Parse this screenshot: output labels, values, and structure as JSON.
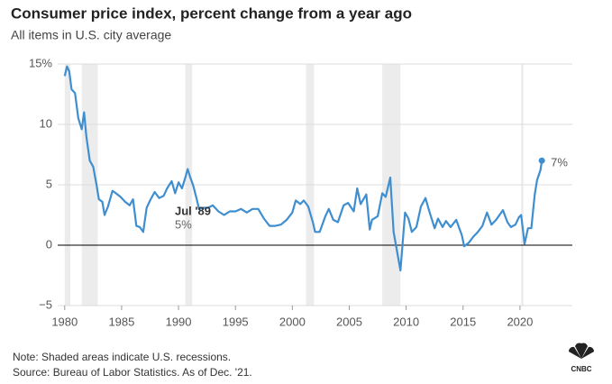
{
  "chart_data": {
    "type": "line",
    "title": "Consumer price index, percent change from a year ago",
    "subtitle": "All items in U.S. city average",
    "note": "Note: Shaded areas indicate U.S. recessions.",
    "source": "Source: Bureau of Labor Statistics. As of Dec. '21.",
    "logo": "CNBC",
    "annotations": [
      "Jul '89",
      "5%"
    ],
    "last_label": "7%",
    "color": "#3f8fd0",
    "recession_color": "#ececec",
    "recessions": [
      [
        1980.0,
        1980.5
      ],
      [
        1981.5,
        1982.9
      ],
      [
        1990.6,
        1991.2
      ],
      [
        2001.2,
        2001.9
      ],
      [
        2007.9,
        2009.5
      ],
      [
        2020.1,
        2020.3
      ]
    ],
    "xlim": [
      1979.7,
      2024.6
    ],
    "xticks": [
      1980,
      1985,
      1990,
      1995,
      2000,
      2005,
      2010,
      2015,
      2020
    ],
    "ylim": [
      -5,
      15
    ],
    "yticks": [
      {
        "value": -5,
        "label": "−5"
      },
      0,
      5,
      10,
      {
        "value": 15,
        "label": "15%"
      }
    ],
    "grid": true,
    "x": [
      1980.0,
      1980.2,
      1980.4,
      1980.6,
      1980.9,
      1981.2,
      1981.5,
      1981.7,
      1981.9,
      1982.2,
      1982.5,
      1982.8,
      1983.0,
      1983.3,
      1983.5,
      1983.8,
      1984.2,
      1984.5,
      1984.9,
      1985.3,
      1985.7,
      1986.0,
      1986.3,
      1986.6,
      1986.9,
      1987.2,
      1987.5,
      1987.9,
      1988.3,
      1988.7,
      1989.0,
      1989.4,
      1989.7,
      1990.0,
      1990.3,
      1990.6,
      1990.8,
      1991.0,
      1991.3,
      1991.6,
      1991.8,
      1992.2,
      1992.6,
      1993.0,
      1993.5,
      1994.0,
      1994.5,
      1995.0,
      1995.5,
      1996.0,
      1996.5,
      1997.0,
      1997.5,
      1998.0,
      1998.5,
      1999.0,
      1999.5,
      2000.0,
      2000.3,
      2000.7,
      2001.0,
      2001.4,
      2001.8,
      2002.0,
      2002.4,
      2002.9,
      2003.2,
      2003.6,
      2004.0,
      2004.5,
      2004.9,
      2005.4,
      2005.7,
      2006.0,
      2006.5,
      2006.8,
      2007.0,
      2007.5,
      2007.9,
      2008.2,
      2008.6,
      2008.9,
      2009.1,
      2009.5,
      2009.9,
      2010.2,
      2010.5,
      2010.9,
      2011.3,
      2011.7,
      2012.0,
      2012.5,
      2012.8,
      2013.2,
      2013.5,
      2013.9,
      2014.4,
      2014.9,
      2015.1,
      2015.5,
      2015.9,
      2016.3,
      2016.7,
      2017.1,
      2017.5,
      2017.9,
      2018.5,
      2018.9,
      2019.2,
      2019.6,
      2019.9,
      2020.1,
      2020.4,
      2020.7,
      2021.0,
      2021.3,
      2021.5,
      2021.8,
      2021.92
    ],
    "values": [
      14.0,
      14.8,
      14.4,
      12.9,
      12.6,
      10.5,
      9.6,
      11.0,
      9.0,
      7.0,
      6.5,
      5.0,
      3.8,
      3.6,
      2.5,
      3.2,
      4.5,
      4.3,
      4.0,
      3.6,
      3.3,
      3.8,
      1.6,
      1.5,
      1.1,
      3.1,
      3.7,
      4.4,
      3.9,
      4.1,
      4.7,
      5.3,
      4.3,
      5.2,
      4.7,
      5.6,
      6.3,
      5.7,
      4.9,
      3.8,
      3.0,
      3.1,
      3.1,
      3.3,
      2.8,
      2.5,
      2.8,
      2.8,
      3.0,
      2.7,
      3.0,
      3.0,
      2.2,
      1.6,
      1.6,
      1.7,
      2.1,
      2.7,
      3.7,
      3.4,
      3.7,
      3.2,
      1.9,
      1.1,
      1.1,
      2.4,
      3.0,
      2.1,
      1.9,
      3.3,
      3.5,
      2.8,
      4.7,
      3.4,
      4.2,
      1.3,
      2.1,
      2.4,
      4.3,
      4.0,
      5.6,
      1.1,
      0.0,
      -2.1,
      2.7,
      2.2,
      1.1,
      1.5,
      3.2,
      3.9,
      2.9,
      1.4,
      2.2,
      1.5,
      2.0,
      1.5,
      2.1,
      0.8,
      -0.1,
      0.2,
      0.7,
      1.1,
      1.6,
      2.7,
      1.7,
      2.1,
      2.9,
      1.9,
      1.5,
      1.7,
      2.3,
      2.5,
      0.1,
      1.4,
      1.4,
      4.2,
      5.4,
      6.2,
      7.0
    ]
  }
}
